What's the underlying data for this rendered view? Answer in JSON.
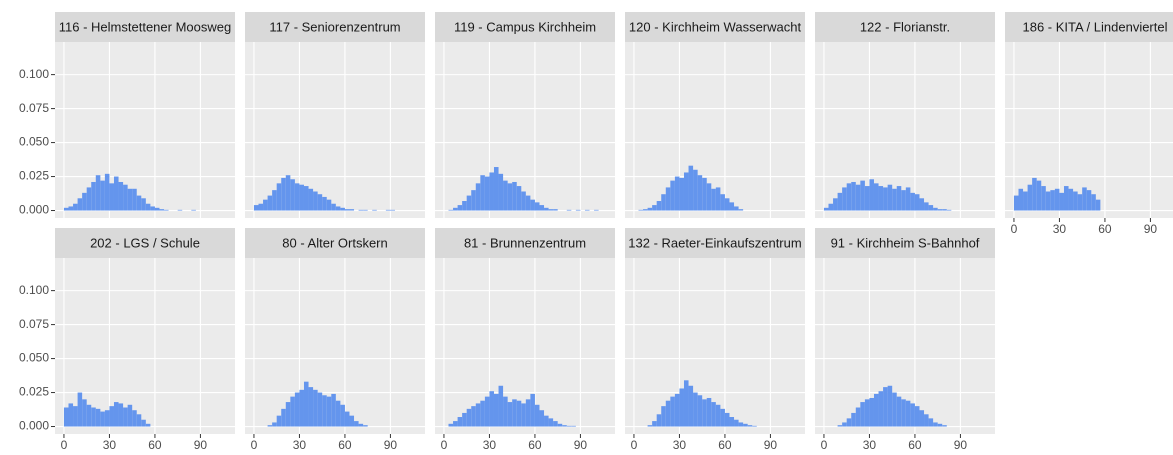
{
  "chart_data": [
    {
      "type": "histogram",
      "title": "116 - Helmstettener Moosweg",
      "color": "#6495ED",
      "xlim": [
        -5.9,
        112.8
      ],
      "ylim": [
        -0.0055,
        0.124
      ],
      "xticks": [
        0,
        30,
        60,
        90
      ],
      "yticks": [
        {
          "value": 0,
          "label": "0.000"
        },
        {
          "value": 0.025,
          "label": "0.025"
        },
        {
          "value": 0.05,
          "label": "0.050"
        },
        {
          "value": 0.075,
          "label": "0.075"
        },
        {
          "value": 0.1,
          "label": "0.100"
        }
      ],
      "grid": true,
      "bins": [
        0,
        3,
        6,
        9,
        12,
        15,
        18,
        21,
        24,
        27,
        30,
        33,
        36,
        39,
        42,
        45,
        48,
        51,
        54,
        57,
        60,
        63,
        66,
        69,
        72,
        75,
        78,
        81,
        84,
        87
      ],
      "values": [
        0.002,
        0.003,
        0.005,
        0.009,
        0.013,
        0.017,
        0.021,
        0.026,
        0.022,
        0.027,
        0.02,
        0.025,
        0.021,
        0.019,
        0.016,
        0.016,
        0.011,
        0.009,
        0.005,
        0.003,
        0.002,
        0.001,
        0.0005,
        0,
        0,
        0.0005,
        0,
        0,
        0.0005
      ]
    },
    {
      "type": "histogram",
      "title": "117 - Seniorenzentrum",
      "color": "#6495ED",
      "xlim": [
        -5.9,
        112.8
      ],
      "ylim": [
        -0.0055,
        0.124
      ],
      "xticks": [
        0,
        30,
        60,
        90
      ],
      "yticks": [
        {
          "value": 0,
          "label": "0.000"
        },
        {
          "value": 0.025,
          "label": "0.025"
        },
        {
          "value": 0.05,
          "label": "0.050"
        },
        {
          "value": 0.075,
          "label": "0.075"
        },
        {
          "value": 0.1,
          "label": "0.100"
        }
      ],
      "grid": true,
      "bins": [
        0,
        3,
        6,
        9,
        12,
        15,
        18,
        21,
        24,
        27,
        30,
        33,
        36,
        39,
        42,
        45,
        48,
        51,
        54,
        57,
        60,
        63,
        66,
        69,
        72,
        75,
        78,
        81,
        84,
        87,
        90,
        93
      ],
      "values": [
        0.004,
        0.005,
        0.008,
        0.011,
        0.015,
        0.02,
        0.024,
        0.026,
        0.023,
        0.02,
        0.019,
        0.018,
        0.016,
        0.014,
        0.012,
        0.01,
        0.008,
        0.005,
        0.003,
        0.002,
        0.001,
        0.001,
        0,
        0.0005,
        0.0005,
        0,
        0.0005,
        0,
        0,
        0.0005,
        0.0005
      ]
    },
    {
      "type": "histogram",
      "title": "119 - Campus Kirchheim",
      "color": "#6495ED",
      "xlim": [
        -5.9,
        112.8
      ],
      "ylim": [
        -0.0055,
        0.124
      ],
      "xticks": [
        0,
        30,
        60,
        90
      ],
      "yticks": [
        {
          "value": 0,
          "label": "0.000"
        },
        {
          "value": 0.025,
          "label": "0.025"
        },
        {
          "value": 0.05,
          "label": "0.050"
        },
        {
          "value": 0.075,
          "label": "0.075"
        },
        {
          "value": 0.1,
          "label": "0.100"
        }
      ],
      "grid": true,
      "bins": [
        0,
        3,
        6,
        9,
        12,
        15,
        18,
        21,
        24,
        27,
        30,
        33,
        36,
        39,
        42,
        45,
        48,
        51,
        54,
        57,
        60,
        63,
        66,
        69,
        72,
        75,
        78,
        81,
        84,
        87,
        90,
        93,
        96,
        99,
        102
      ],
      "values": [
        0,
        0.0005,
        0.002,
        0.004,
        0.007,
        0.011,
        0.015,
        0.02,
        0.026,
        0.025,
        0.028,
        0.032,
        0.027,
        0.022,
        0.02,
        0.021,
        0.018,
        0.014,
        0.011,
        0.008,
        0.006,
        0.004,
        0.002,
        0.001,
        0.001,
        0,
        0,
        0.0005,
        0,
        0.0005,
        0,
        0.0005,
        0,
        0.0005
      ]
    },
    {
      "type": "histogram",
      "title": "120 - Kirchheim Wasserwacht",
      "color": "#6495ED",
      "xlim": [
        -5.9,
        112.8
      ],
      "ylim": [
        -0.0055,
        0.124
      ],
      "xticks": [
        0,
        30,
        60,
        90
      ],
      "yticks": [
        {
          "value": 0,
          "label": "0.000"
        },
        {
          "value": 0.025,
          "label": "0.025"
        },
        {
          "value": 0.05,
          "label": "0.050"
        },
        {
          "value": 0.075,
          "label": "0.075"
        },
        {
          "value": 0.1,
          "label": "0.100"
        }
      ],
      "grid": true,
      "bins": [
        0,
        3,
        6,
        9,
        12,
        15,
        18,
        21,
        24,
        27,
        30,
        33,
        36,
        39,
        42,
        45,
        48,
        51,
        54,
        57,
        60,
        63,
        66,
        69,
        72,
        75,
        78
      ],
      "values": [
        0,
        0.0005,
        0.001,
        0.002,
        0.004,
        0.007,
        0.012,
        0.017,
        0.022,
        0.025,
        0.024,
        0.028,
        0.033,
        0.03,
        0.026,
        0.024,
        0.02,
        0.016,
        0.017,
        0.012,
        0.009,
        0.006,
        0.003,
        0.001,
        0,
        0
      ]
    },
    {
      "type": "histogram",
      "title": "122 - Florianstr.",
      "color": "#6495ED",
      "xlim": [
        -5.9,
        112.8
      ],
      "ylim": [
        -0.0055,
        0.124
      ],
      "xticks": [
        0,
        30,
        60,
        90
      ],
      "yticks": [
        {
          "value": 0,
          "label": "0.000"
        },
        {
          "value": 0.025,
          "label": "0.025"
        },
        {
          "value": 0.05,
          "label": "0.050"
        },
        {
          "value": 0.075,
          "label": "0.075"
        },
        {
          "value": 0.1,
          "label": "0.100"
        }
      ],
      "grid": true,
      "bins": [
        0,
        3,
        6,
        9,
        12,
        15,
        18,
        21,
        24,
        27,
        30,
        33,
        36,
        39,
        42,
        45,
        48,
        51,
        54,
        57,
        60,
        63,
        66,
        69,
        72,
        75,
        78,
        81,
        84
      ],
      "values": [
        0.002,
        0.005,
        0.009,
        0.013,
        0.017,
        0.02,
        0.021,
        0.019,
        0.022,
        0.018,
        0.023,
        0.02,
        0.018,
        0.017,
        0.019,
        0.016,
        0.018,
        0.015,
        0.017,
        0.013,
        0.012,
        0.009,
        0.006,
        0.004,
        0.002,
        0.001,
        0.001,
        0.0005
      ]
    },
    {
      "type": "histogram",
      "title": "186 - KITA / Lindenviertel",
      "color": "#6495ED",
      "xlim": [
        -5.9,
        112.8
      ],
      "ylim": [
        -0.0055,
        0.124
      ],
      "xticks": [
        0,
        30,
        60,
        90
      ],
      "yticks": [
        {
          "value": 0,
          "label": "0.000"
        },
        {
          "value": 0.025,
          "label": "0.025"
        },
        {
          "value": 0.05,
          "label": "0.050"
        },
        {
          "value": 0.075,
          "label": "0.075"
        },
        {
          "value": 0.1,
          "label": "0.100"
        }
      ],
      "grid": true,
      "bins": [
        0,
        3,
        6,
        9,
        12,
        15,
        18,
        21,
        24,
        27,
        30,
        33,
        36,
        39,
        42,
        45,
        48,
        51,
        54,
        57
      ],
      "values": [
        0.011,
        0.016,
        0.014,
        0.019,
        0.024,
        0.022,
        0.018,
        0.014,
        0.015,
        0.016,
        0.013,
        0.018,
        0.016,
        0.014,
        0.012,
        0.017,
        0.015,
        0.012,
        0.008
      ]
    },
    {
      "type": "histogram",
      "title": "202 - LGS / Schule",
      "color": "#6495ED",
      "xlim": [
        -5.9,
        112.8
      ],
      "ylim": [
        -0.0055,
        0.124
      ],
      "xticks": [
        0,
        30,
        60,
        90
      ],
      "yticks": [
        {
          "value": 0,
          "label": "0.000"
        },
        {
          "value": 0.025,
          "label": "0.025"
        },
        {
          "value": 0.05,
          "label": "0.050"
        },
        {
          "value": 0.075,
          "label": "0.075"
        },
        {
          "value": 0.1,
          "label": "0.100"
        }
      ],
      "grid": true,
      "bins": [
        0,
        3,
        6,
        9,
        12,
        15,
        18,
        21,
        24,
        27,
        30,
        33,
        36,
        39,
        42,
        45,
        48,
        51,
        54,
        57
      ],
      "values": [
        0.014,
        0.017,
        0.015,
        0.025,
        0.02,
        0.016,
        0.014,
        0.013,
        0.011,
        0.012,
        0.015,
        0.018,
        0.017,
        0.014,
        0.016,
        0.012,
        0.009,
        0.005,
        0.002
      ]
    },
    {
      "type": "histogram",
      "title": "80 - Alter Ortskern",
      "color": "#6495ED",
      "xlim": [
        -5.9,
        112.8
      ],
      "ylim": [
        -0.0055,
        0.124
      ],
      "xticks": [
        0,
        30,
        60,
        90
      ],
      "yticks": [
        {
          "value": 0,
          "label": "0.000"
        },
        {
          "value": 0.025,
          "label": "0.025"
        },
        {
          "value": 0.05,
          "label": "0.050"
        },
        {
          "value": 0.075,
          "label": "0.075"
        },
        {
          "value": 0.1,
          "label": "0.100"
        }
      ],
      "grid": true,
      "bins": [
        0,
        3,
        6,
        9,
        12,
        15,
        18,
        21,
        24,
        27,
        30,
        33,
        36,
        39,
        42,
        45,
        48,
        51,
        54,
        57,
        60,
        63,
        66,
        69,
        72,
        75,
        78
      ],
      "values": [
        0,
        0,
        0,
        0.001,
        0.003,
        0.008,
        0.013,
        0.018,
        0.022,
        0.025,
        0.027,
        0.033,
        0.029,
        0.027,
        0.025,
        0.023,
        0.022,
        0.024,
        0.019,
        0.016,
        0.011,
        0.008,
        0.004,
        0.002,
        0.001,
        0
      ]
    },
    {
      "type": "histogram",
      "title": "81 - Brunnenzentrum",
      "color": "#6495ED",
      "xlim": [
        -5.9,
        112.8
      ],
      "ylim": [
        -0.0055,
        0.124
      ],
      "xticks": [
        0,
        30,
        60,
        90
      ],
      "yticks": [
        {
          "value": 0,
          "label": "0.000"
        },
        {
          "value": 0.025,
          "label": "0.025"
        },
        {
          "value": 0.05,
          "label": "0.050"
        },
        {
          "value": 0.075,
          "label": "0.075"
        },
        {
          "value": 0.1,
          "label": "0.100"
        }
      ],
      "grid": true,
      "bins": [
        0,
        3,
        6,
        9,
        12,
        15,
        18,
        21,
        24,
        27,
        30,
        33,
        36,
        39,
        42,
        45,
        48,
        51,
        54,
        57,
        60,
        63,
        66,
        69,
        72,
        75,
        78,
        81,
        84,
        87
      ],
      "values": [
        0,
        0.002,
        0.004,
        0.007,
        0.01,
        0.013,
        0.015,
        0.017,
        0.019,
        0.022,
        0.026,
        0.024,
        0.03,
        0.022,
        0.018,
        0.02,
        0.019,
        0.017,
        0.02,
        0.024,
        0.016,
        0.012,
        0.008,
        0.006,
        0.004,
        0.002,
        0.001,
        0.0005,
        0.0005
      ]
    },
    {
      "type": "histogram",
      "title": "132 - Raeter-Einkaufszentrum",
      "color": "#6495ED",
      "xlim": [
        -5.9,
        112.8
      ],
      "ylim": [
        -0.0055,
        0.124
      ],
      "xticks": [
        0,
        30,
        60,
        90
      ],
      "yticks": [
        {
          "value": 0,
          "label": "0.000"
        },
        {
          "value": 0.025,
          "label": "0.025"
        },
        {
          "value": 0.05,
          "label": "0.050"
        },
        {
          "value": 0.075,
          "label": "0.075"
        },
        {
          "value": 0.1,
          "label": "0.100"
        }
      ],
      "grid": true,
      "bins": [
        0,
        3,
        6,
        9,
        12,
        15,
        18,
        21,
        24,
        27,
        30,
        33,
        36,
        39,
        42,
        45,
        48,
        51,
        54,
        57,
        60,
        63,
        66,
        69,
        72,
        75,
        78,
        81,
        84
      ],
      "values": [
        0,
        0,
        0,
        0.001,
        0.004,
        0.009,
        0.015,
        0.019,
        0.022,
        0.024,
        0.028,
        0.034,
        0.03,
        0.025,
        0.023,
        0.02,
        0.021,
        0.018,
        0.016,
        0.013,
        0.01,
        0.007,
        0.005,
        0.003,
        0.002,
        0.001,
        0.0005,
        0
      ]
    },
    {
      "type": "histogram",
      "title": "91 - Kirchheim S-Bahnhof",
      "color": "#6495ED",
      "xlim": [
        -5.9,
        112.8
      ],
      "ylim": [
        -0.0055,
        0.124
      ],
      "xticks": [
        0,
        30,
        60,
        90
      ],
      "yticks": [
        {
          "value": 0,
          "label": "0.000"
        },
        {
          "value": 0.025,
          "label": "0.025"
        },
        {
          "value": 0.05,
          "label": "0.050"
        },
        {
          "value": 0.075,
          "label": "0.075"
        },
        {
          "value": 0.1,
          "label": "0.100"
        }
      ],
      "grid": true,
      "bins": [
        0,
        3,
        6,
        9,
        12,
        15,
        18,
        21,
        24,
        27,
        30,
        33,
        36,
        39,
        42,
        45,
        48,
        51,
        54,
        57,
        60,
        63,
        66,
        69,
        72,
        75,
        78,
        81,
        84
      ],
      "values": [
        0,
        0,
        0,
        0.001,
        0.003,
        0.006,
        0.01,
        0.014,
        0.018,
        0.02,
        0.021,
        0.024,
        0.026,
        0.029,
        0.03,
        0.025,
        0.022,
        0.02,
        0.019,
        0.017,
        0.015,
        0.012,
        0.009,
        0.006,
        0.003,
        0.002,
        0.001,
        0
      ]
    }
  ]
}
